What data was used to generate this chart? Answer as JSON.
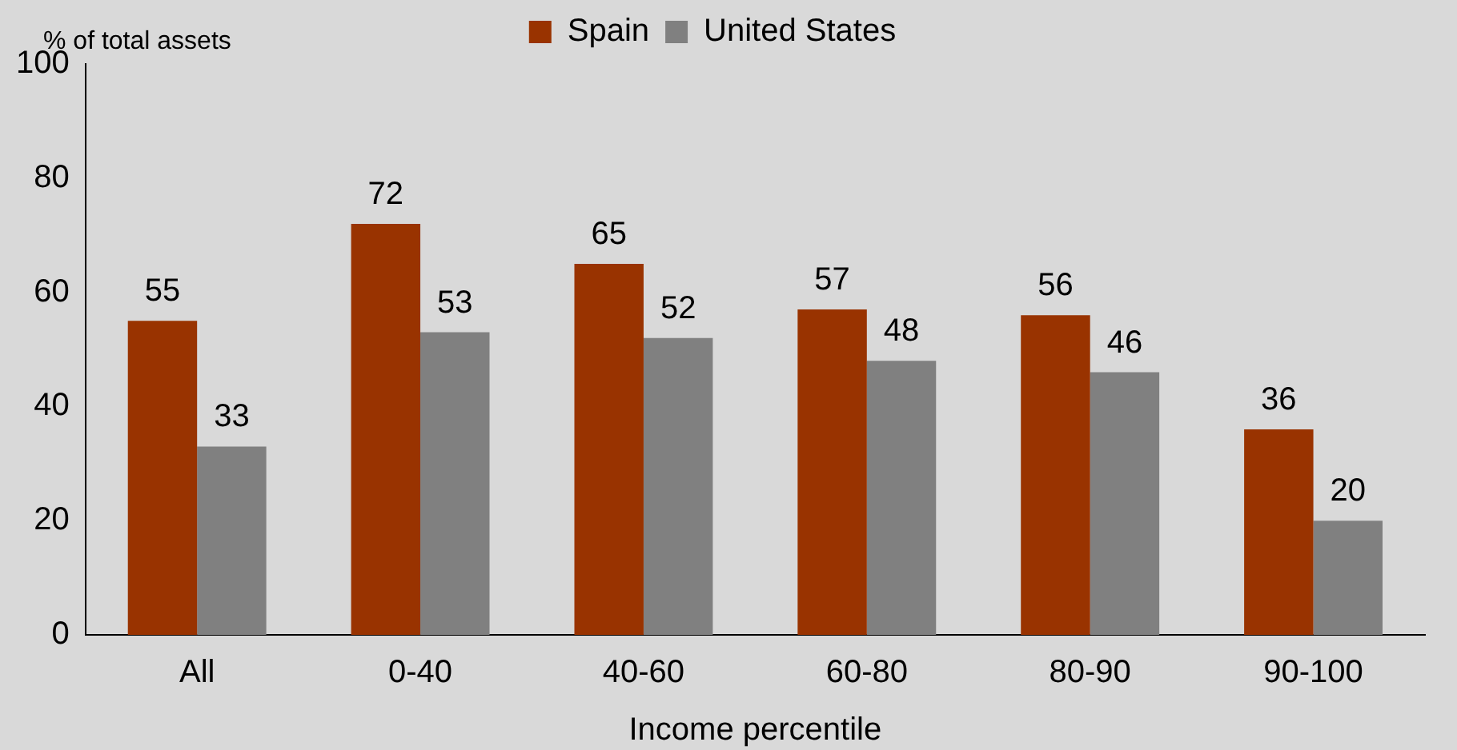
{
  "chart_data": {
    "type": "bar",
    "ylabel": "% of total assets",
    "xlabel": "Income percentile",
    "categories": [
      "All",
      "0-40",
      "40-60",
      "60-80",
      "80-90",
      "90-100"
    ],
    "series": [
      {
        "name": "Spain",
        "color": "#993300",
        "values": [
          55,
          72,
          65,
          57,
          56,
          36
        ]
      },
      {
        "name": "United States",
        "color": "#808080",
        "values": [
          33,
          53,
          52,
          48,
          46,
          20
        ]
      }
    ],
    "ylim": [
      0,
      100
    ],
    "yticks": [
      0,
      20,
      40,
      60,
      80,
      100
    ],
    "grid": false,
    "legend": "top",
    "data_labels": true
  }
}
